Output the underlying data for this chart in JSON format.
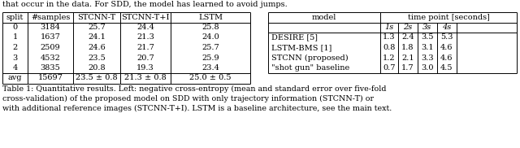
{
  "left_table": {
    "headers": [
      "split",
      "#samples",
      "STCNN-T",
      "STCNN-T+I",
      "LSTM"
    ],
    "rows": [
      [
        "0",
        "3184",
        "25.7",
        "24.4",
        "25.8"
      ],
      [
        "1",
        "1637",
        "24.1",
        "21.3",
        "24.0"
      ],
      [
        "2",
        "2509",
        "24.6",
        "21.7",
        "25.7"
      ],
      [
        "3",
        "4532",
        "23.5",
        "20.7",
        "25.9"
      ],
      [
        "4",
        "3835",
        "20.8",
        "19.3",
        "23.4"
      ]
    ],
    "avg_row": [
      "avg",
      "15697",
      "23.5 ± 0.8",
      "21.3 ± 0.8",
      "25.0 ± 0.5"
    ]
  },
  "right_table": {
    "rows": [
      [
        "DESIRE [5]",
        "1.3",
        "2.4",
        "3.5",
        "5.3"
      ],
      [
        "LSTM-BMS [1]",
        "0.8",
        "1.8",
        "3.1",
        "4.6"
      ],
      [
        "STCNN (proposed)",
        "1.2",
        "2.1",
        "3.3",
        "4.6"
      ],
      [
        "\"shot gun\" baseline",
        "0.7",
        "1.7",
        "3.0",
        "4.5"
      ]
    ]
  },
  "caption": "Table 1: Quantitative results. Left: negative cross-entropy (mean and standard error over five-fold\ncross-validation) of the proposed model on SDD with only trajectory information (STCNN-T) or\nwith additional reference images (STCNN-T+I). LSTM is a baseline architecture, see the main text.",
  "header_text": "that occur in the data. For SDD, the model has learned to avoid jumps.",
  "bg_color": "#ffffff",
  "text_color": "#000000",
  "lw": 0.7
}
